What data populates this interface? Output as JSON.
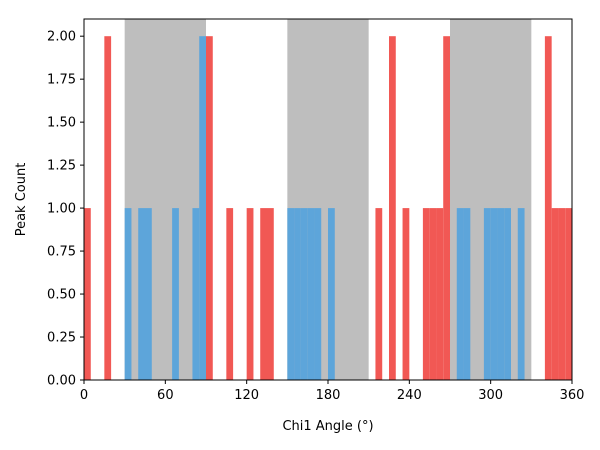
{
  "chart_data": {
    "type": "bar",
    "title": "",
    "xlabel": "Chi1 Angle (°)",
    "ylabel": "Peak Count",
    "xlim": [
      0,
      360
    ],
    "ylim": [
      0,
      2.1
    ],
    "xticks": [
      0,
      60,
      120,
      180,
      240,
      300,
      360
    ],
    "xtick_labels": [
      "0",
      "60",
      "120",
      "180",
      "240",
      "300",
      "360"
    ],
    "yticks": [
      0,
      0.25,
      0.5,
      0.75,
      1.0,
      1.25,
      1.5,
      1.75,
      2.0
    ],
    "ytick_labels": [
      "0.00",
      "0.25",
      "0.50",
      "0.75",
      "1.00",
      "1.25",
      "1.50",
      "1.75",
      "2.00"
    ],
    "grid": false,
    "bin_width": 5,
    "shaded_regions": [
      {
        "start": 30,
        "end": 90
      },
      {
        "start": 150,
        "end": 210
      },
      {
        "start": 270,
        "end": 330
      }
    ],
    "colors": {
      "in_region": "#5DA5DA",
      "out_region": "#F15854",
      "shade": "#BEBEBE"
    },
    "bins": [
      {
        "x": 0,
        "value": 1
      },
      {
        "x": 15,
        "value": 2
      },
      {
        "x": 30,
        "value": 1
      },
      {
        "x": 40,
        "value": 1
      },
      {
        "x": 45,
        "value": 1
      },
      {
        "x": 65,
        "value": 1
      },
      {
        "x": 80,
        "value": 1
      },
      {
        "x": 85,
        "value": 2
      },
      {
        "x": 90,
        "value": 2
      },
      {
        "x": 105,
        "value": 1
      },
      {
        "x": 120,
        "value": 1
      },
      {
        "x": 130,
        "value": 1
      },
      {
        "x": 135,
        "value": 1
      },
      {
        "x": 150,
        "value": 1
      },
      {
        "x": 155,
        "value": 1
      },
      {
        "x": 160,
        "value": 1
      },
      {
        "x": 165,
        "value": 1
      },
      {
        "x": 170,
        "value": 1
      },
      {
        "x": 180,
        "value": 1
      },
      {
        "x": 215,
        "value": 1
      },
      {
        "x": 225,
        "value": 2
      },
      {
        "x": 235,
        "value": 1
      },
      {
        "x": 250,
        "value": 1
      },
      {
        "x": 255,
        "value": 1
      },
      {
        "x": 260,
        "value": 1
      },
      {
        "x": 265,
        "value": 2
      },
      {
        "x": 275,
        "value": 1
      },
      {
        "x": 280,
        "value": 1
      },
      {
        "x": 295,
        "value": 1
      },
      {
        "x": 300,
        "value": 1
      },
      {
        "x": 305,
        "value": 1
      },
      {
        "x": 310,
        "value": 1
      },
      {
        "x": 320,
        "value": 1
      },
      {
        "x": 340,
        "value": 2
      },
      {
        "x": 345,
        "value": 1
      },
      {
        "x": 350,
        "value": 1
      },
      {
        "x": 355,
        "value": 1
      }
    ]
  }
}
